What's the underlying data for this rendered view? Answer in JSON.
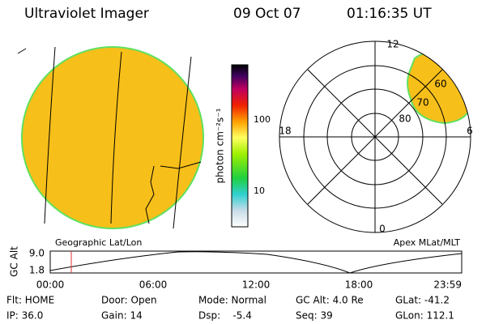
{
  "header": {
    "title": "Ultraviolet Imager",
    "date": "09 Oct 07",
    "time": "01:16:35 UT"
  },
  "colorbar": {
    "label": "photon cm⁻²s⁻¹",
    "ticks": [
      "100",
      "10"
    ]
  },
  "polar": {
    "mlt_labels": [
      "12",
      "18",
      "6",
      "0"
    ],
    "lat_labels": [
      "60",
      "70",
      "80"
    ]
  },
  "captions": {
    "left": "Geographic Lat/Lon",
    "right": "Apex MLat/MLT"
  },
  "altitude": {
    "ylabel": "GC Alt",
    "yticks": [
      "9.0",
      "1.8"
    ],
    "xticks": [
      "00:00",
      "06:00",
      "12:00",
      "18:00",
      "23:59"
    ]
  },
  "footer": {
    "rows": [
      [
        "Flt: HOME",
        "Door: Open",
        "Mode: Normal",
        "GC Alt: 4.0 Re",
        "GLat: -41.2"
      ],
      [
        "IP: 36.0",
        "Gain: 14",
        "Dsp:    -5.4",
        "Seq: 39",
        "GLon: 112.1"
      ]
    ]
  }
}
